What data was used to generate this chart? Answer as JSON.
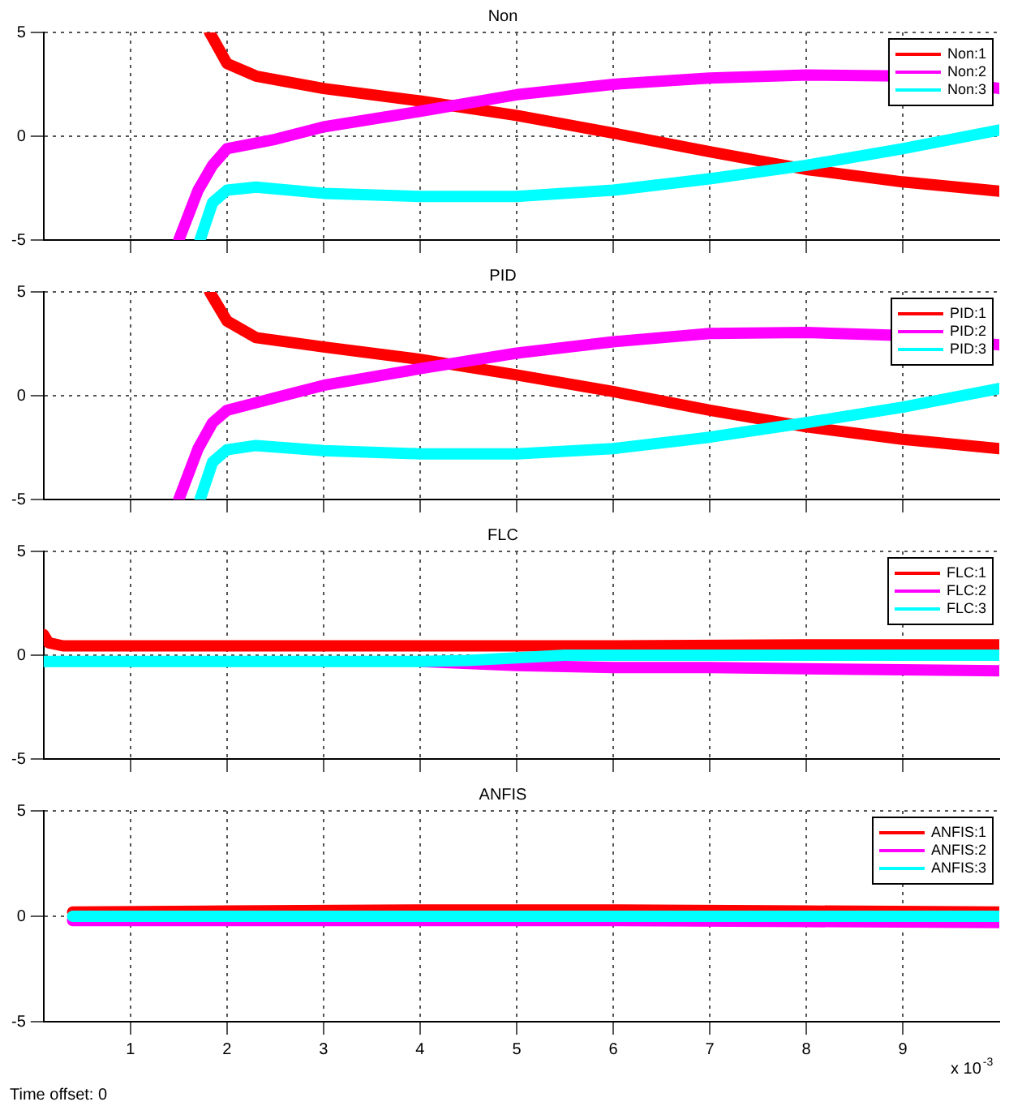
{
  "chart_data": [
    {
      "type": "line",
      "title": "Non",
      "xlim": [
        0.1,
        10
      ],
      "xticks": [
        1,
        2,
        3,
        4,
        5,
        6,
        7,
        8,
        9
      ],
      "ylim": [
        -5,
        5
      ],
      "yticks": [
        -5,
        0,
        5
      ],
      "grid": true,
      "legend": "top right",
      "marker": "none",
      "line_style": "solid",
      "tick_labels": "y",
      "series": [
        {
          "name": "Non:1",
          "color": "#ff0000",
          "x": [
            1.82,
            2,
            2.3,
            3,
            4,
            5,
            6,
            7,
            8,
            9,
            10
          ],
          "values": [
            5,
            3.5,
            2.9,
            2.3,
            1.7,
            1.0,
            0.15,
            -0.75,
            -1.6,
            -2.2,
            -2.65
          ]
        },
        {
          "name": "Non:2",
          "color": "#ff00ff",
          "x": [
            1.5,
            1.7,
            1.85,
            2,
            2.5,
            3,
            4,
            5,
            6,
            7,
            8,
            9,
            10
          ],
          "values": [
            -5,
            -2.6,
            -1.4,
            -0.6,
            -0.15,
            0.45,
            1.2,
            2.0,
            2.5,
            2.8,
            2.95,
            2.9,
            2.3
          ]
        },
        {
          "name": "Non:3",
          "color": "#00ffff",
          "x": [
            1.72,
            1.85,
            2,
            2.3,
            3,
            4,
            5,
            6,
            7,
            8,
            9,
            10
          ],
          "values": [
            -5,
            -3.2,
            -2.6,
            -2.45,
            -2.75,
            -2.9,
            -2.9,
            -2.6,
            -2.05,
            -1.4,
            -0.6,
            0.3
          ]
        }
      ]
    },
    {
      "type": "line",
      "title": "PID",
      "xlim": [
        0.1,
        10
      ],
      "xticks": [
        1,
        2,
        3,
        4,
        5,
        6,
        7,
        8,
        9
      ],
      "ylim": [
        -5,
        5
      ],
      "yticks": [
        -5,
        0,
        5
      ],
      "grid": true,
      "legend": "top right",
      "marker": "none",
      "line_style": "solid",
      "tick_labels": "y",
      "series": [
        {
          "name": "PID:1",
          "color": "#ff0000",
          "x": [
            1.82,
            2,
            2.3,
            3,
            4,
            5,
            6,
            7,
            8,
            9,
            10
          ],
          "values": [
            5,
            3.6,
            2.8,
            2.35,
            1.75,
            1.0,
            0.2,
            -0.7,
            -1.5,
            -2.1,
            -2.55
          ]
        },
        {
          "name": "PID:2",
          "color": "#ff00ff",
          "x": [
            1.5,
            1.7,
            1.85,
            2,
            2.5,
            3,
            4,
            5,
            6,
            7,
            8,
            9,
            10
          ],
          "values": [
            -5,
            -2.55,
            -1.3,
            -0.7,
            -0.1,
            0.5,
            1.3,
            2.05,
            2.6,
            3.0,
            3.05,
            2.9,
            2.45
          ]
        },
        {
          "name": "PID:3",
          "color": "#00ffff",
          "x": [
            1.72,
            1.85,
            2,
            2.3,
            3,
            4,
            5,
            6,
            7,
            8,
            9,
            10
          ],
          "values": [
            -5,
            -3.2,
            -2.6,
            -2.4,
            -2.65,
            -2.8,
            -2.8,
            -2.55,
            -2.0,
            -1.3,
            -0.55,
            0.35
          ]
        }
      ]
    },
    {
      "type": "line",
      "title": "FLC",
      "xlim": [
        0.1,
        10
      ],
      "xticks": [
        1,
        2,
        3,
        4,
        5,
        6,
        7,
        8,
        9
      ],
      "ylim": [
        -5,
        5
      ],
      "yticks": [
        -5,
        0,
        5
      ],
      "grid": true,
      "legend": "top right",
      "marker": "none",
      "line_style": "solid",
      "tick_labels": "y",
      "series": [
        {
          "name": "FLC:1",
          "color": "#ff0000",
          "x": [
            0.1,
            0.15,
            0.3,
            2,
            4,
            6,
            8,
            10
          ],
          "values": [
            1.0,
            0.6,
            0.45,
            0.45,
            0.45,
            0.45,
            0.5,
            0.5
          ]
        },
        {
          "name": "FLC:2",
          "color": "#ff00ff",
          "x": [
            4,
            5,
            6,
            7,
            8,
            9,
            10
          ],
          "values": [
            -0.3,
            -0.5,
            -0.6,
            -0.6,
            -0.65,
            -0.7,
            -0.75
          ]
        },
        {
          "name": "FLC:3",
          "color": "#00ffff",
          "x": [
            0.1,
            2,
            4,
            4.5,
            5.5,
            7,
            8.5,
            10
          ],
          "values": [
            -0.3,
            -0.3,
            -0.3,
            -0.25,
            0,
            0,
            0,
            0
          ]
        }
      ]
    },
    {
      "type": "line",
      "title": "ANFIS",
      "xlim": [
        0.1,
        10
      ],
      "xticks": [
        1,
        2,
        3,
        4,
        5,
        6,
        7,
        8,
        9
      ],
      "ylim": [
        -5,
        5
      ],
      "yticks": [
        -5,
        0,
        5
      ],
      "grid": true,
      "legend": "top right",
      "marker": "none",
      "line_style": "solid",
      "annotations": [
        "x 10$^{-3}$",
        "Time offset: 0"
      ],
      "series": [
        {
          "name": "ANFIS:1",
          "color": "#ff0000",
          "x": [
            0.4,
            2,
            4,
            6,
            8,
            10
          ],
          "values": [
            0.2,
            0.25,
            0.3,
            0.3,
            0.25,
            0.2
          ]
        },
        {
          "name": "ANFIS:2",
          "color": "#ff00ff",
          "x": [
            0.4,
            2,
            4,
            6,
            8,
            10
          ],
          "values": [
            -0.2,
            -0.2,
            -0.2,
            -0.2,
            -0.25,
            -0.3
          ]
        },
        {
          "name": "ANFIS:3",
          "color": "#00ffff",
          "x": [
            0.4,
            2,
            4,
            6,
            8,
            10
          ],
          "values": [
            0,
            0,
            0,
            0,
            0,
            0
          ]
        }
      ]
    }
  ]
}
